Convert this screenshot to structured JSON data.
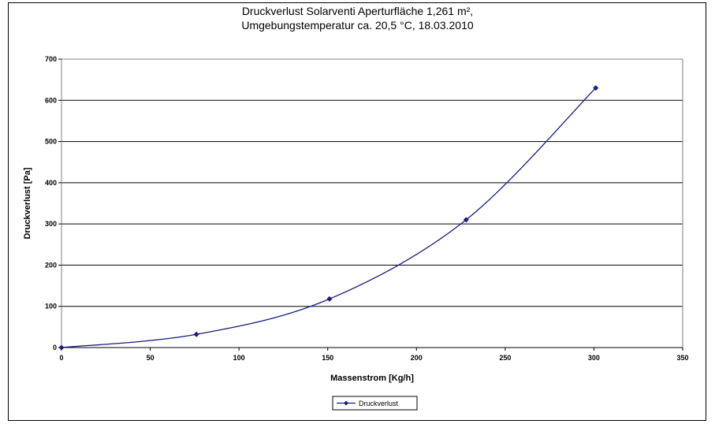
{
  "chart_data": {
    "type": "line",
    "title": "Druckverlust Solarventi Aperturfläche 1,261 m²,",
    "subtitle": "Umgebungstemperatur ca. 20,5 °C, 18.03.2010",
    "xlabel": "Massenstrom [Kg/h]",
    "ylabel": "Druckverlust [Pa]",
    "xlim": [
      0,
      350
    ],
    "ylim": [
      0,
      700
    ],
    "xticks": [
      "0",
      "50",
      "100",
      "150",
      "200",
      "250",
      "300",
      "350"
    ],
    "yticks": [
      "0",
      "100",
      "200",
      "300",
      "400",
      "500",
      "600",
      "700"
    ],
    "grid": "horizontal",
    "legend": "bottom-center",
    "series": [
      {
        "name": "Druckverlust",
        "color": "#1a1a80",
        "marker": "diamond",
        "smooth": true,
        "x": [
          0,
          76,
          151,
          228,
          301
        ],
        "y": [
          0,
          32,
          118,
          310,
          630
        ]
      }
    ]
  }
}
